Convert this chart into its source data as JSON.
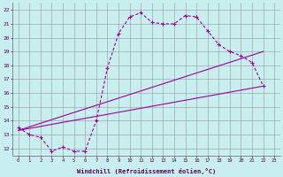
{
  "xlabel": "Windchill (Refroidissement éolien,°C)",
  "bg_color": "#c8eef0",
  "line_color": "#990099",
  "xlim": [
    -0.5,
    23.5
  ],
  "ylim": [
    11.5,
    22.5
  ],
  "xticks": [
    0,
    1,
    2,
    3,
    4,
    5,
    6,
    7,
    8,
    9,
    10,
    11,
    12,
    13,
    14,
    15,
    16,
    17,
    18,
    19,
    20,
    21,
    22,
    23
  ],
  "yticks": [
    12,
    13,
    14,
    15,
    16,
    17,
    18,
    19,
    20,
    21,
    22
  ],
  "main_line": {
    "x": [
      0,
      1,
      2,
      3,
      4,
      5,
      6,
      7,
      8,
      9,
      10,
      11,
      12,
      13,
      14,
      15,
      16,
      17,
      18,
      19,
      20,
      21,
      22
    ],
    "y": [
      13.5,
      13.0,
      12.8,
      11.8,
      12.1,
      11.8,
      11.8,
      14.0,
      17.8,
      20.3,
      21.5,
      21.8,
      21.1,
      21.0,
      21.0,
      21.6,
      21.5,
      20.5,
      19.5,
      19.0,
      18.7,
      18.2,
      16.5
    ]
  },
  "reg_line1": {
    "x": [
      0,
      22
    ],
    "y": [
      13.3,
      16.5
    ]
  },
  "reg_line2": {
    "x": [
      0,
      22
    ],
    "y": [
      13.3,
      19.0
    ]
  }
}
